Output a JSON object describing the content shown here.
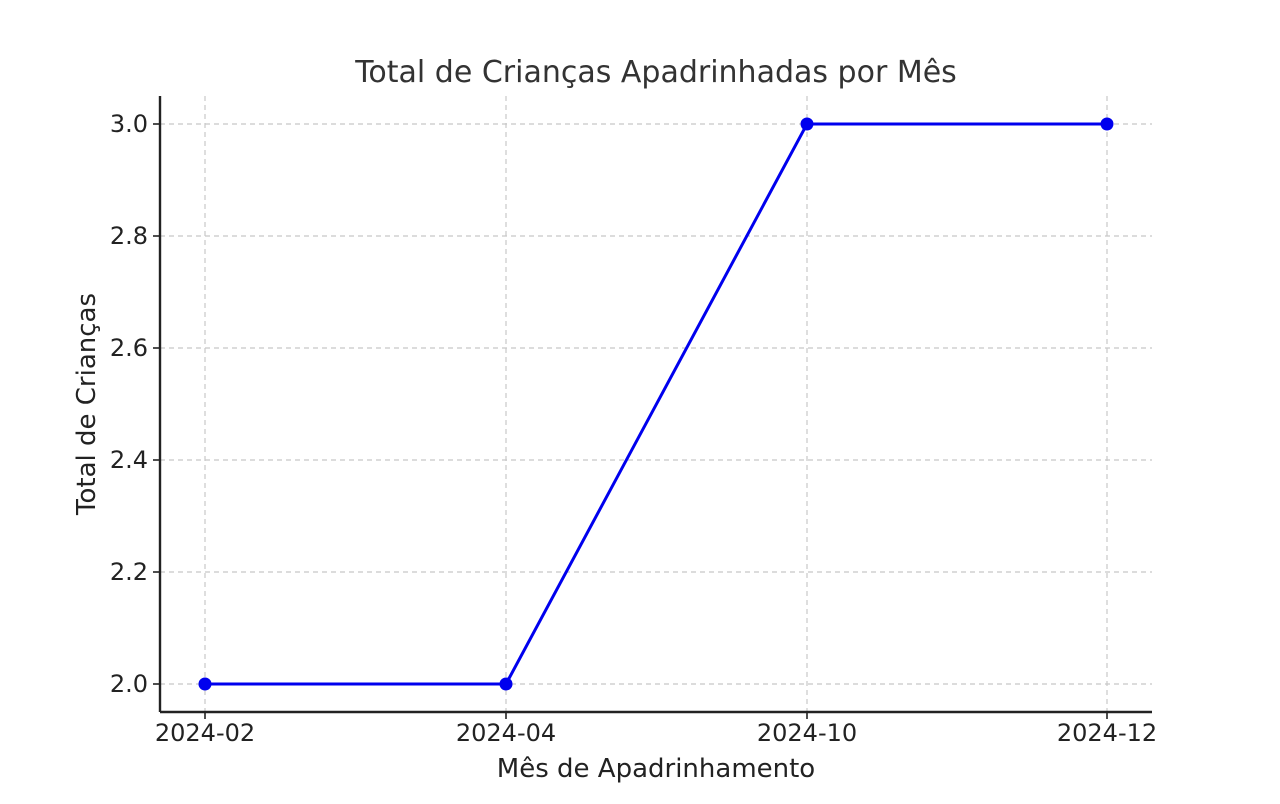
{
  "chart_data": {
    "type": "line",
    "title": "Total de Crianças Apadrinhadas por Mês",
    "xlabel": "Mês de Apadrinhamento",
    "ylabel": "Total de Crianças",
    "categories": [
      "2024-02",
      "2024-04",
      "2024-10",
      "2024-12"
    ],
    "series": [
      {
        "values": [
          2.0,
          2.0,
          3.0,
          3.0
        ],
        "color": "#0000ee",
        "marker": "circle"
      }
    ],
    "ylim": [
      1.95,
      3.05
    ],
    "yticks": [
      "2.0",
      "2.2",
      "2.4",
      "2.6",
      "2.8",
      "3.0"
    ],
    "grid": true,
    "grid_style": "dashed",
    "legend": "none"
  }
}
